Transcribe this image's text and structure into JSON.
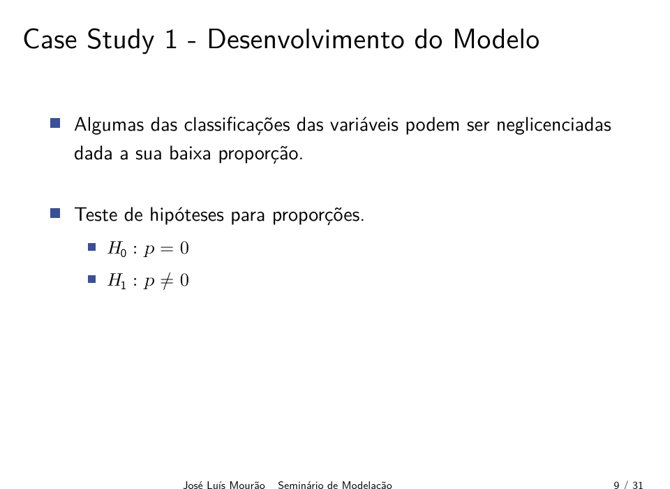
{
  "title": "Case Study 1 - Desenvolvimento do Modelo",
  "bullets": [
    "Algumas das classificações das variáveis podem ser neglicenciadas dada a sua baixa proporção.",
    "Teste de hipóteses para proporções."
  ],
  "hypotheses": {
    "H0_var": "H",
    "H0_idx": "0",
    "H1_var": "H",
    "H1_idx": "1",
    "p": "p",
    "eq": " = 0",
    "neq_sym": "≠",
    "zero": " 0",
    "colon": " : "
  },
  "footer": {
    "author": "José Luís Mourão",
    "talk": "Seminário de Modelação",
    "page": "9 / 31"
  },
  "colors": {
    "accent": "#3a4f9b",
    "text": "#000000",
    "background": "#ffffff"
  }
}
